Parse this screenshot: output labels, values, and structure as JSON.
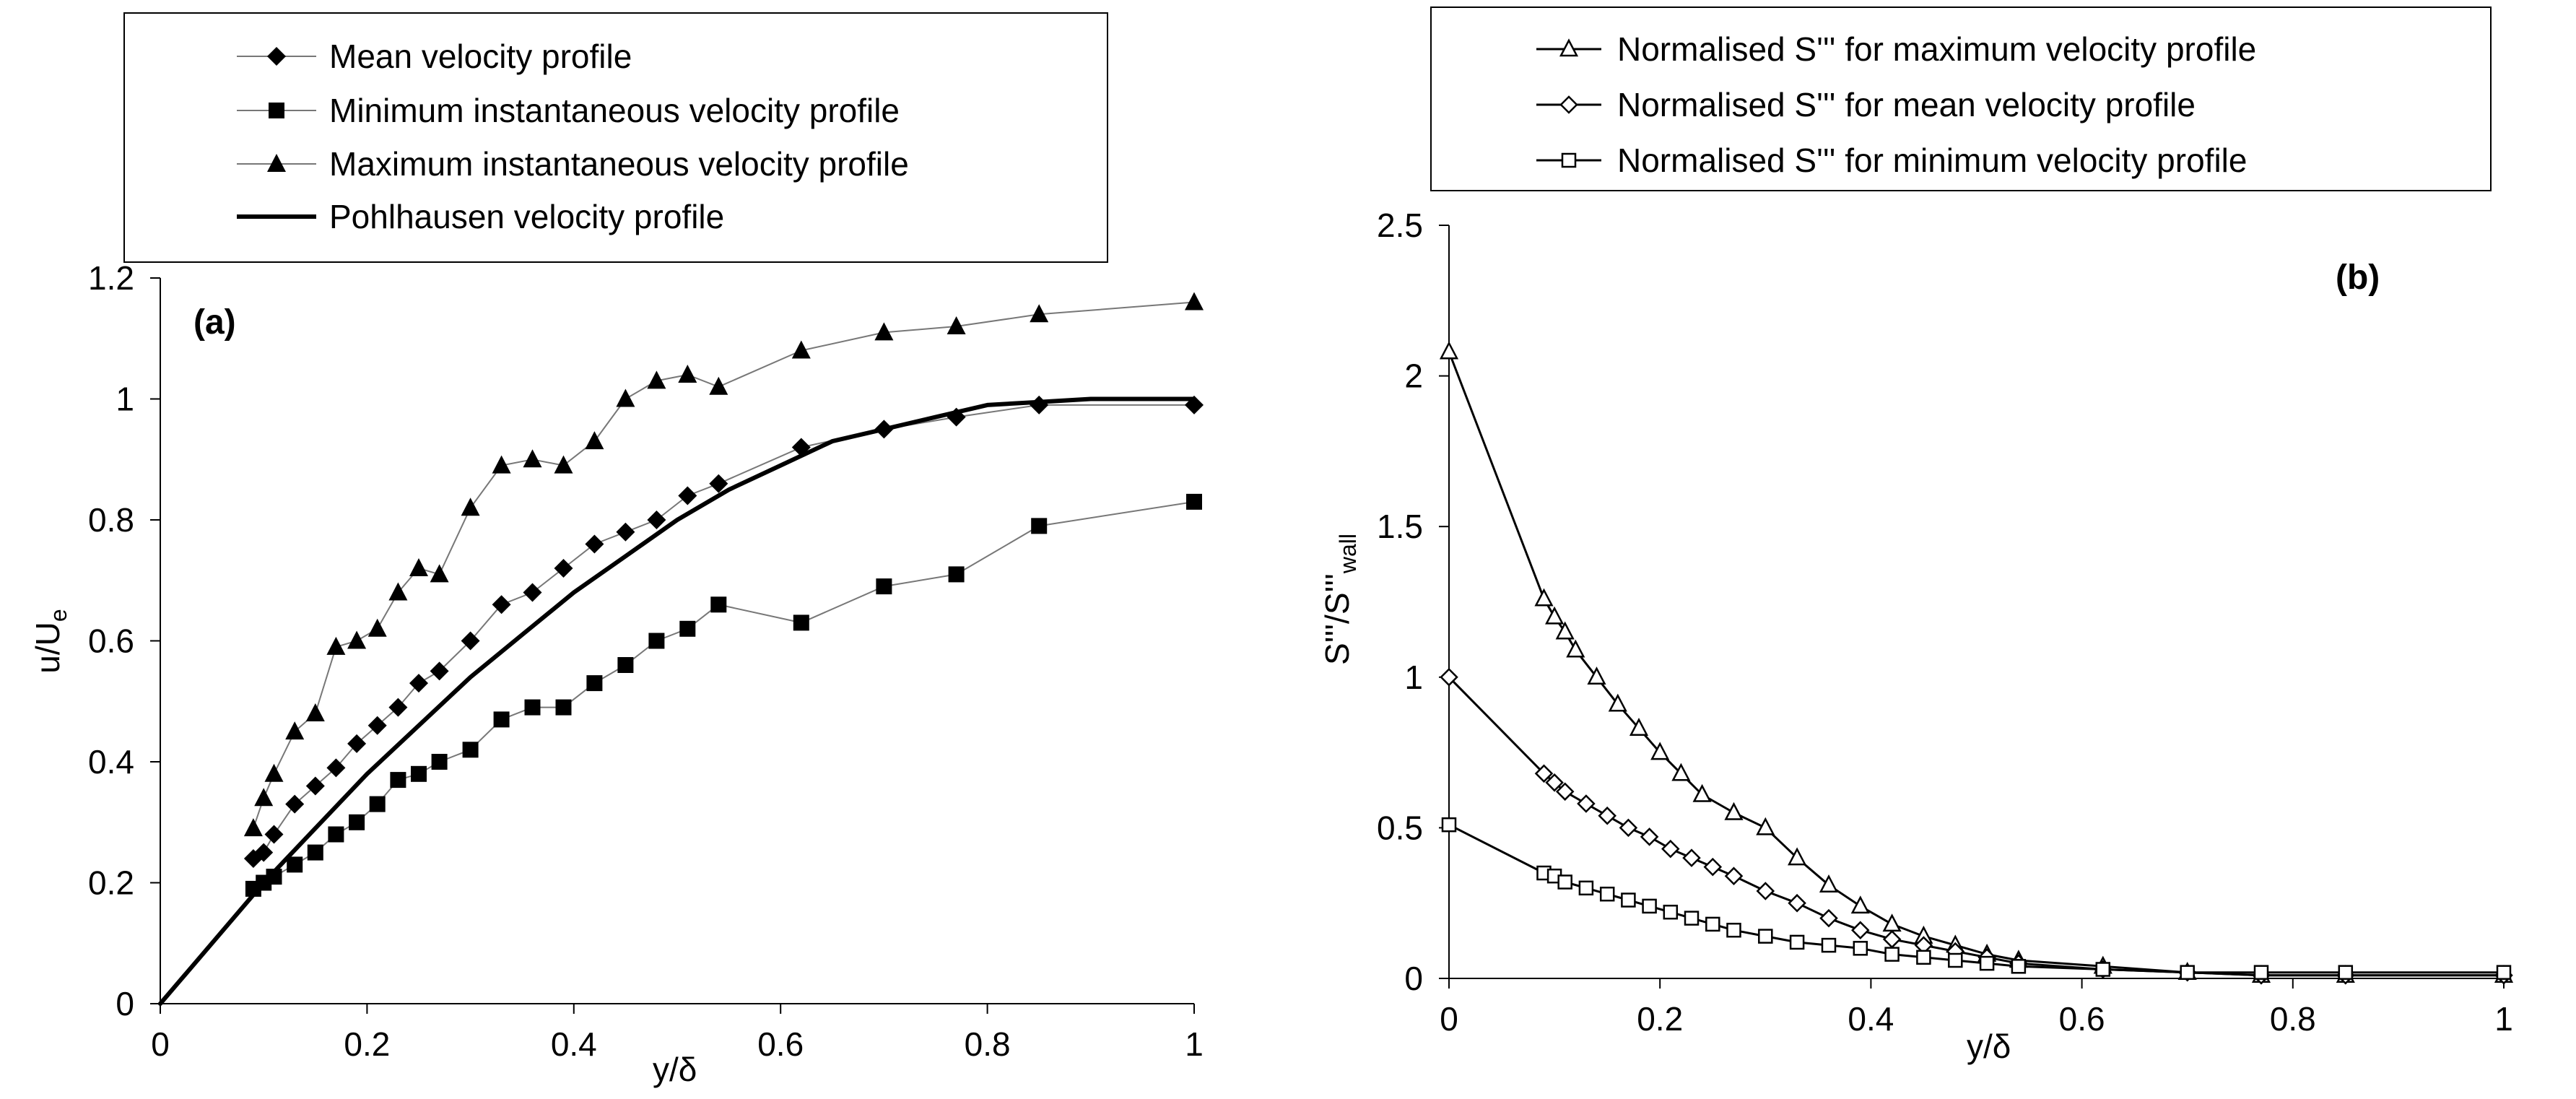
{
  "chart_data": [
    {
      "type": "line",
      "panel_label": "(a)",
      "xlabel": "y/δ",
      "ylabel": "u/U",
      "ylabel_sub": "e",
      "xlim": [
        0,
        1
      ],
      "ylim": [
        0,
        1.2
      ],
      "x_ticks": [
        "0",
        "0.2",
        "0.4",
        "0.6",
        "0.8",
        "1"
      ],
      "y_ticks": [
        "0",
        "0.2",
        "0.4",
        "0.6",
        "0.8",
        "1",
        "1.2"
      ],
      "grid": false,
      "legend_position": "top",
      "series": [
        {
          "name": "Mean velocity profile",
          "marker": "diamond",
          "line": "thin",
          "x": [
            0.09,
            0.1,
            0.11,
            0.13,
            0.15,
            0.17,
            0.19,
            0.21,
            0.23,
            0.25,
            0.27,
            0.3,
            0.33,
            0.36,
            0.39,
            0.42,
            0.45,
            0.48,
            0.51,
            0.54,
            0.62,
            0.7,
            0.77,
            0.85,
            1.0
          ],
          "y": [
            0.24,
            0.25,
            0.28,
            0.33,
            0.36,
            0.39,
            0.43,
            0.46,
            0.49,
            0.53,
            0.55,
            0.6,
            0.66,
            0.68,
            0.72,
            0.76,
            0.78,
            0.8,
            0.84,
            0.86,
            0.92,
            0.95,
            0.97,
            0.99,
            0.99
          ]
        },
        {
          "name": "Minimum instantaneous velocity profile",
          "marker": "square",
          "line": "thin",
          "x": [
            0.09,
            0.1,
            0.11,
            0.13,
            0.15,
            0.17,
            0.19,
            0.21,
            0.23,
            0.25,
            0.27,
            0.3,
            0.33,
            0.36,
            0.39,
            0.42,
            0.45,
            0.48,
            0.51,
            0.54,
            0.62,
            0.7,
            0.77,
            0.85,
            1.0
          ],
          "y": [
            0.19,
            0.2,
            0.21,
            0.23,
            0.25,
            0.28,
            0.3,
            0.33,
            0.37,
            0.38,
            0.4,
            0.42,
            0.47,
            0.49,
            0.49,
            0.53,
            0.56,
            0.6,
            0.62,
            0.66,
            0.63,
            0.69,
            0.71,
            0.79,
            0.83
          ]
        },
        {
          "name": "Maximum instantaneous velocity profile",
          "marker": "triangle",
          "line": "thin",
          "x": [
            0.09,
            0.1,
            0.11,
            0.13,
            0.15,
            0.17,
            0.19,
            0.21,
            0.23,
            0.25,
            0.27,
            0.3,
            0.33,
            0.36,
            0.39,
            0.42,
            0.45,
            0.48,
            0.51,
            0.54,
            0.62,
            0.7,
            0.77,
            0.85,
            1.0
          ],
          "y": [
            0.29,
            0.34,
            0.38,
            0.45,
            0.48,
            0.59,
            0.6,
            0.62,
            0.68,
            0.72,
            0.71,
            0.82,
            0.89,
            0.9,
            0.89,
            0.93,
            1.0,
            1.03,
            1.04,
            1.02,
            1.08,
            1.11,
            1.12,
            1.14,
            1.16
          ]
        },
        {
          "name": "Pohlhausen velocity profile",
          "marker": "none",
          "line": "thick",
          "x": [
            0,
            0.05,
            0.1,
            0.15,
            0.2,
            0.25,
            0.3,
            0.35,
            0.4,
            0.45,
            0.5,
            0.55,
            0.6,
            0.65,
            0.7,
            0.75,
            0.8,
            0.85,
            0.9,
            0.95,
            1.0
          ],
          "y": [
            0,
            0.1,
            0.2,
            0.29,
            0.38,
            0.46,
            0.54,
            0.61,
            0.68,
            0.74,
            0.8,
            0.85,
            0.89,
            0.93,
            0.95,
            0.97,
            0.99,
            0.995,
            1.0,
            1.0,
            1.0
          ]
        }
      ]
    },
    {
      "type": "line",
      "panel_label": "(b)",
      "xlabel": "y/δ",
      "ylabel": "S'''/S'''",
      "ylabel_sub": "wall",
      "xlim": [
        0,
        1
      ],
      "ylim": [
        0,
        2.5
      ],
      "x_ticks": [
        "0",
        "0.2",
        "0.4",
        "0.6",
        "0.8",
        "1"
      ],
      "y_ticks": [
        "0",
        "0.5",
        "1",
        "1.5",
        "2",
        "2.5"
      ],
      "grid": false,
      "legend_position": "top",
      "series": [
        {
          "name": "Normalised S''' for maximum velocity profile",
          "marker": "open-triangle",
          "x": [
            0,
            0.09,
            0.1,
            0.11,
            0.12,
            0.14,
            0.16,
            0.18,
            0.2,
            0.22,
            0.24,
            0.27,
            0.3,
            0.33,
            0.36,
            0.39,
            0.42,
            0.45,
            0.48,
            0.51,
            0.54,
            0.62,
            0.7,
            0.77,
            0.85,
            1.0
          ],
          "y": [
            2.08,
            1.26,
            1.2,
            1.15,
            1.09,
            1.0,
            0.91,
            0.83,
            0.75,
            0.68,
            0.61,
            0.55,
            0.5,
            0.4,
            0.31,
            0.24,
            0.18,
            0.14,
            0.11,
            0.08,
            0.06,
            0.04,
            0.02,
            0.01,
            0.01,
            0.01
          ]
        },
        {
          "name": "Normalised S''' for mean velocity profile",
          "marker": "open-diamond",
          "x": [
            0,
            0.09,
            0.1,
            0.11,
            0.13,
            0.15,
            0.17,
            0.19,
            0.21,
            0.23,
            0.25,
            0.27,
            0.3,
            0.33,
            0.36,
            0.39,
            0.42,
            0.45,
            0.48,
            0.51,
            0.54,
            0.62,
            0.7,
            0.77,
            0.85,
            1.0
          ],
          "y": [
            1.0,
            0.68,
            0.65,
            0.62,
            0.58,
            0.54,
            0.5,
            0.47,
            0.43,
            0.4,
            0.37,
            0.34,
            0.29,
            0.25,
            0.2,
            0.16,
            0.13,
            0.11,
            0.09,
            0.07,
            0.05,
            0.03,
            0.02,
            0.01,
            0.01,
            0.01
          ]
        },
        {
          "name": "Normalised S''' for minimum velocity profile",
          "marker": "open-square",
          "x": [
            0,
            0.09,
            0.1,
            0.11,
            0.13,
            0.15,
            0.17,
            0.19,
            0.21,
            0.23,
            0.25,
            0.27,
            0.3,
            0.33,
            0.36,
            0.39,
            0.42,
            0.45,
            0.48,
            0.51,
            0.54,
            0.62,
            0.7,
            0.77,
            0.85,
            1.0
          ],
          "y": [
            0.51,
            0.35,
            0.34,
            0.32,
            0.3,
            0.28,
            0.26,
            0.24,
            0.22,
            0.2,
            0.18,
            0.16,
            0.14,
            0.12,
            0.11,
            0.1,
            0.08,
            0.07,
            0.06,
            0.05,
            0.04,
            0.03,
            0.02,
            0.02,
            0.02,
            0.02
          ]
        }
      ]
    }
  ]
}
